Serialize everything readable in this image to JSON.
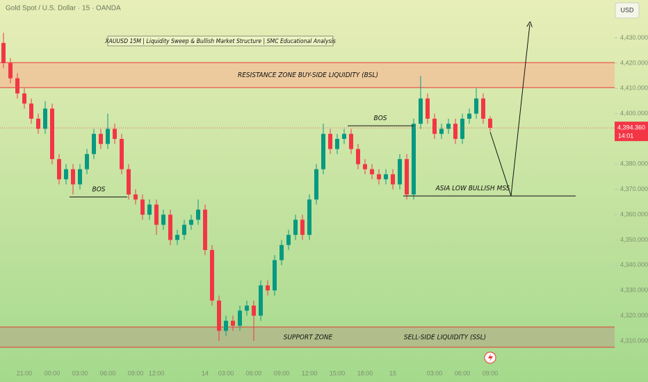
{
  "chart_data": {
    "type": "candlestick",
    "header": "Gold Spot / U.S. Dollar · 15 · OANDA",
    "currency": "USD",
    "title": "XAUUSD 15M | Liquidity Sweep & Bullish Market Structure | SMC Educational Analysis",
    "categories": [
      null,
      null,
      null,
      "21:00",
      null,
      null,
      null,
      "00:00",
      null,
      null,
      null,
      "03:00",
      null,
      null,
      null,
      "06:00",
      null,
      null,
      null,
      "09:00",
      null,
      null,
      "12:00",
      null,
      null,
      null,
      null,
      null,
      null,
      "14",
      null,
      null,
      "03:00",
      null,
      null,
      null,
      "06:00",
      null,
      null,
      null,
      "09:00",
      null,
      null,
      null,
      "12:00",
      null,
      null,
      null,
      "15:00",
      null,
      null,
      null,
      "18:00",
      null,
      null,
      null,
      "15",
      null,
      null,
      null,
      null,
      null,
      "03:00",
      null,
      null,
      null,
      "06:00",
      null,
      null,
      null,
      "09:00"
    ],
    "open": [
      4428,
      4420,
      4414,
      4408,
      4404,
      4398,
      4394,
      4402,
      4382,
      4374,
      4378,
      4372,
      4378,
      4384,
      4392,
      4388,
      4394,
      4390,
      4378,
      4368,
      4366,
      4360,
      4364,
      4356,
      4360,
      4350,
      4352,
      4356,
      4358,
      4362,
      4346,
      4326,
      4314,
      4318,
      4316,
      4322,
      4324,
      4320,
      4332,
      4330,
      4342,
      4348,
      4352,
      4358,
      4352,
      4366,
      4378,
      4392,
      4386,
      4390,
      4392,
      4386,
      4380,
      4378,
      4376,
      4374,
      4376,
      4372,
      4382,
      4368,
      4396,
      4406,
      4398,
      4392,
      4394,
      4396,
      4390,
      4398,
      4400,
      4406,
      4398
    ],
    "high": [
      4432,
      4422,
      4416,
      4410,
      4406,
      4400,
      4405,
      4404,
      4384,
      4380,
      4380,
      4380,
      4386,
      4394,
      4394,
      4400,
      4396,
      4392,
      4380,
      4370,
      4368,
      4366,
      4366,
      4362,
      4362,
      4354,
      4358,
      4360,
      4366,
      4364,
      4348,
      4328,
      4320,
      4320,
      4324,
      4326,
      4326,
      4334,
      4334,
      4344,
      4350,
      4354,
      4360,
      4360,
      4368,
      4380,
      4396,
      4394,
      4392,
      4394,
      4394,
      4388,
      4382,
      4380,
      4378,
      4378,
      4378,
      4384,
      4384,
      4398,
      4415,
      4408,
      4400,
      4396,
      4398,
      4398,
      4400,
      4402,
      4410,
      4408,
      4399
    ],
    "low": [
      4418,
      4412,
      4406,
      4402,
      4396,
      4392,
      4392,
      4380,
      4372,
      4372,
      4368,
      4370,
      4376,
      4382,
      4386,
      4386,
      4388,
      4376,
      4366,
      4364,
      4358,
      4358,
      4352,
      4354,
      4348,
      4348,
      4350,
      4354,
      4356,
      4344,
      4324,
      4310,
      4312,
      4314,
      4314,
      4320,
      4310,
      4318,
      4328,
      4328,
      4340,
      4346,
      4350,
      4350,
      4350,
      4364,
      4376,
      4384,
      4384,
      4388,
      4384,
      4378,
      4376,
      4374,
      4372,
      4372,
      4370,
      4370,
      4366,
      4366,
      4394,
      4396,
      4390,
      4390,
      4392,
      4388,
      4388,
      4396,
      4398,
      4396,
      4393
    ],
    "close": [
      4420,
      4414,
      4408,
      4404,
      4398,
      4394,
      4402,
      4382,
      4374,
      4378,
      4372,
      4378,
      4384,
      4392,
      4388,
      4394,
      4390,
      4378,
      4368,
      4366,
      4360,
      4364,
      4356,
      4360,
      4350,
      4352,
      4356,
      4358,
      4362,
      4346,
      4326,
      4314,
      4318,
      4316,
      4322,
      4324,
      4320,
      4332,
      4330,
      4342,
      4348,
      4352,
      4358,
      4352,
      4366,
      4378,
      4392,
      4386,
      4390,
      4392,
      4386,
      4380,
      4378,
      4376,
      4374,
      4376,
      4372,
      4382,
      4368,
      4396,
      4406,
      4398,
      4392,
      4394,
      4396,
      4390,
      4398,
      4400,
      4406,
      4398,
      4394.36
    ],
    "up_color": "#089981",
    "down_color": "#f23645",
    "ylim": [
      4302,
      4445
    ],
    "yticks": [
      {
        "value": 4430,
        "label": "4,430.000"
      },
      {
        "value": 4420,
        "label": "4,420.000"
      },
      {
        "value": 4410,
        "label": "4,410.000"
      },
      {
        "value": 4400,
        "label": "4,400.000"
      },
      {
        "value": 4380,
        "label": "4,380.000"
      },
      {
        "value": 4370,
        "label": "4,370.000"
      },
      {
        "value": 4360,
        "label": "4,360.000"
      },
      {
        "value": 4350,
        "label": "4,350.000"
      },
      {
        "value": 4340,
        "label": "4,340.000"
      },
      {
        "value": 4330,
        "label": "4,330.000"
      },
      {
        "value": 4320,
        "label": "4,320.000"
      },
      {
        "value": 4310,
        "label": "4,310.000"
      }
    ],
    "last_price": {
      "value": 4394.36,
      "label": "4,394.360"
    },
    "countdown": "14:01",
    "zones": [
      {
        "label": "RESISTANCE ZONE   BUY-SIDE LIQUIDITY (BSL)",
        "from": 4410.3,
        "to": 4420.2,
        "color": "#f3bf98"
      },
      {
        "label": "SUPPORT ZONE",
        "label2": "SELL-SIDE LIQUIDITY (SSL)",
        "from": 4307.5,
        "to": 4315.5,
        "color": "#b3b48a"
      }
    ],
    "levels": [
      {
        "label": "BOS",
        "value": 4367
      },
      {
        "label": "BOS",
        "value": 4395.2
      },
      {
        "label": "ASIA LOW BULLISH MSS",
        "value": 4367.4
      }
    ]
  }
}
